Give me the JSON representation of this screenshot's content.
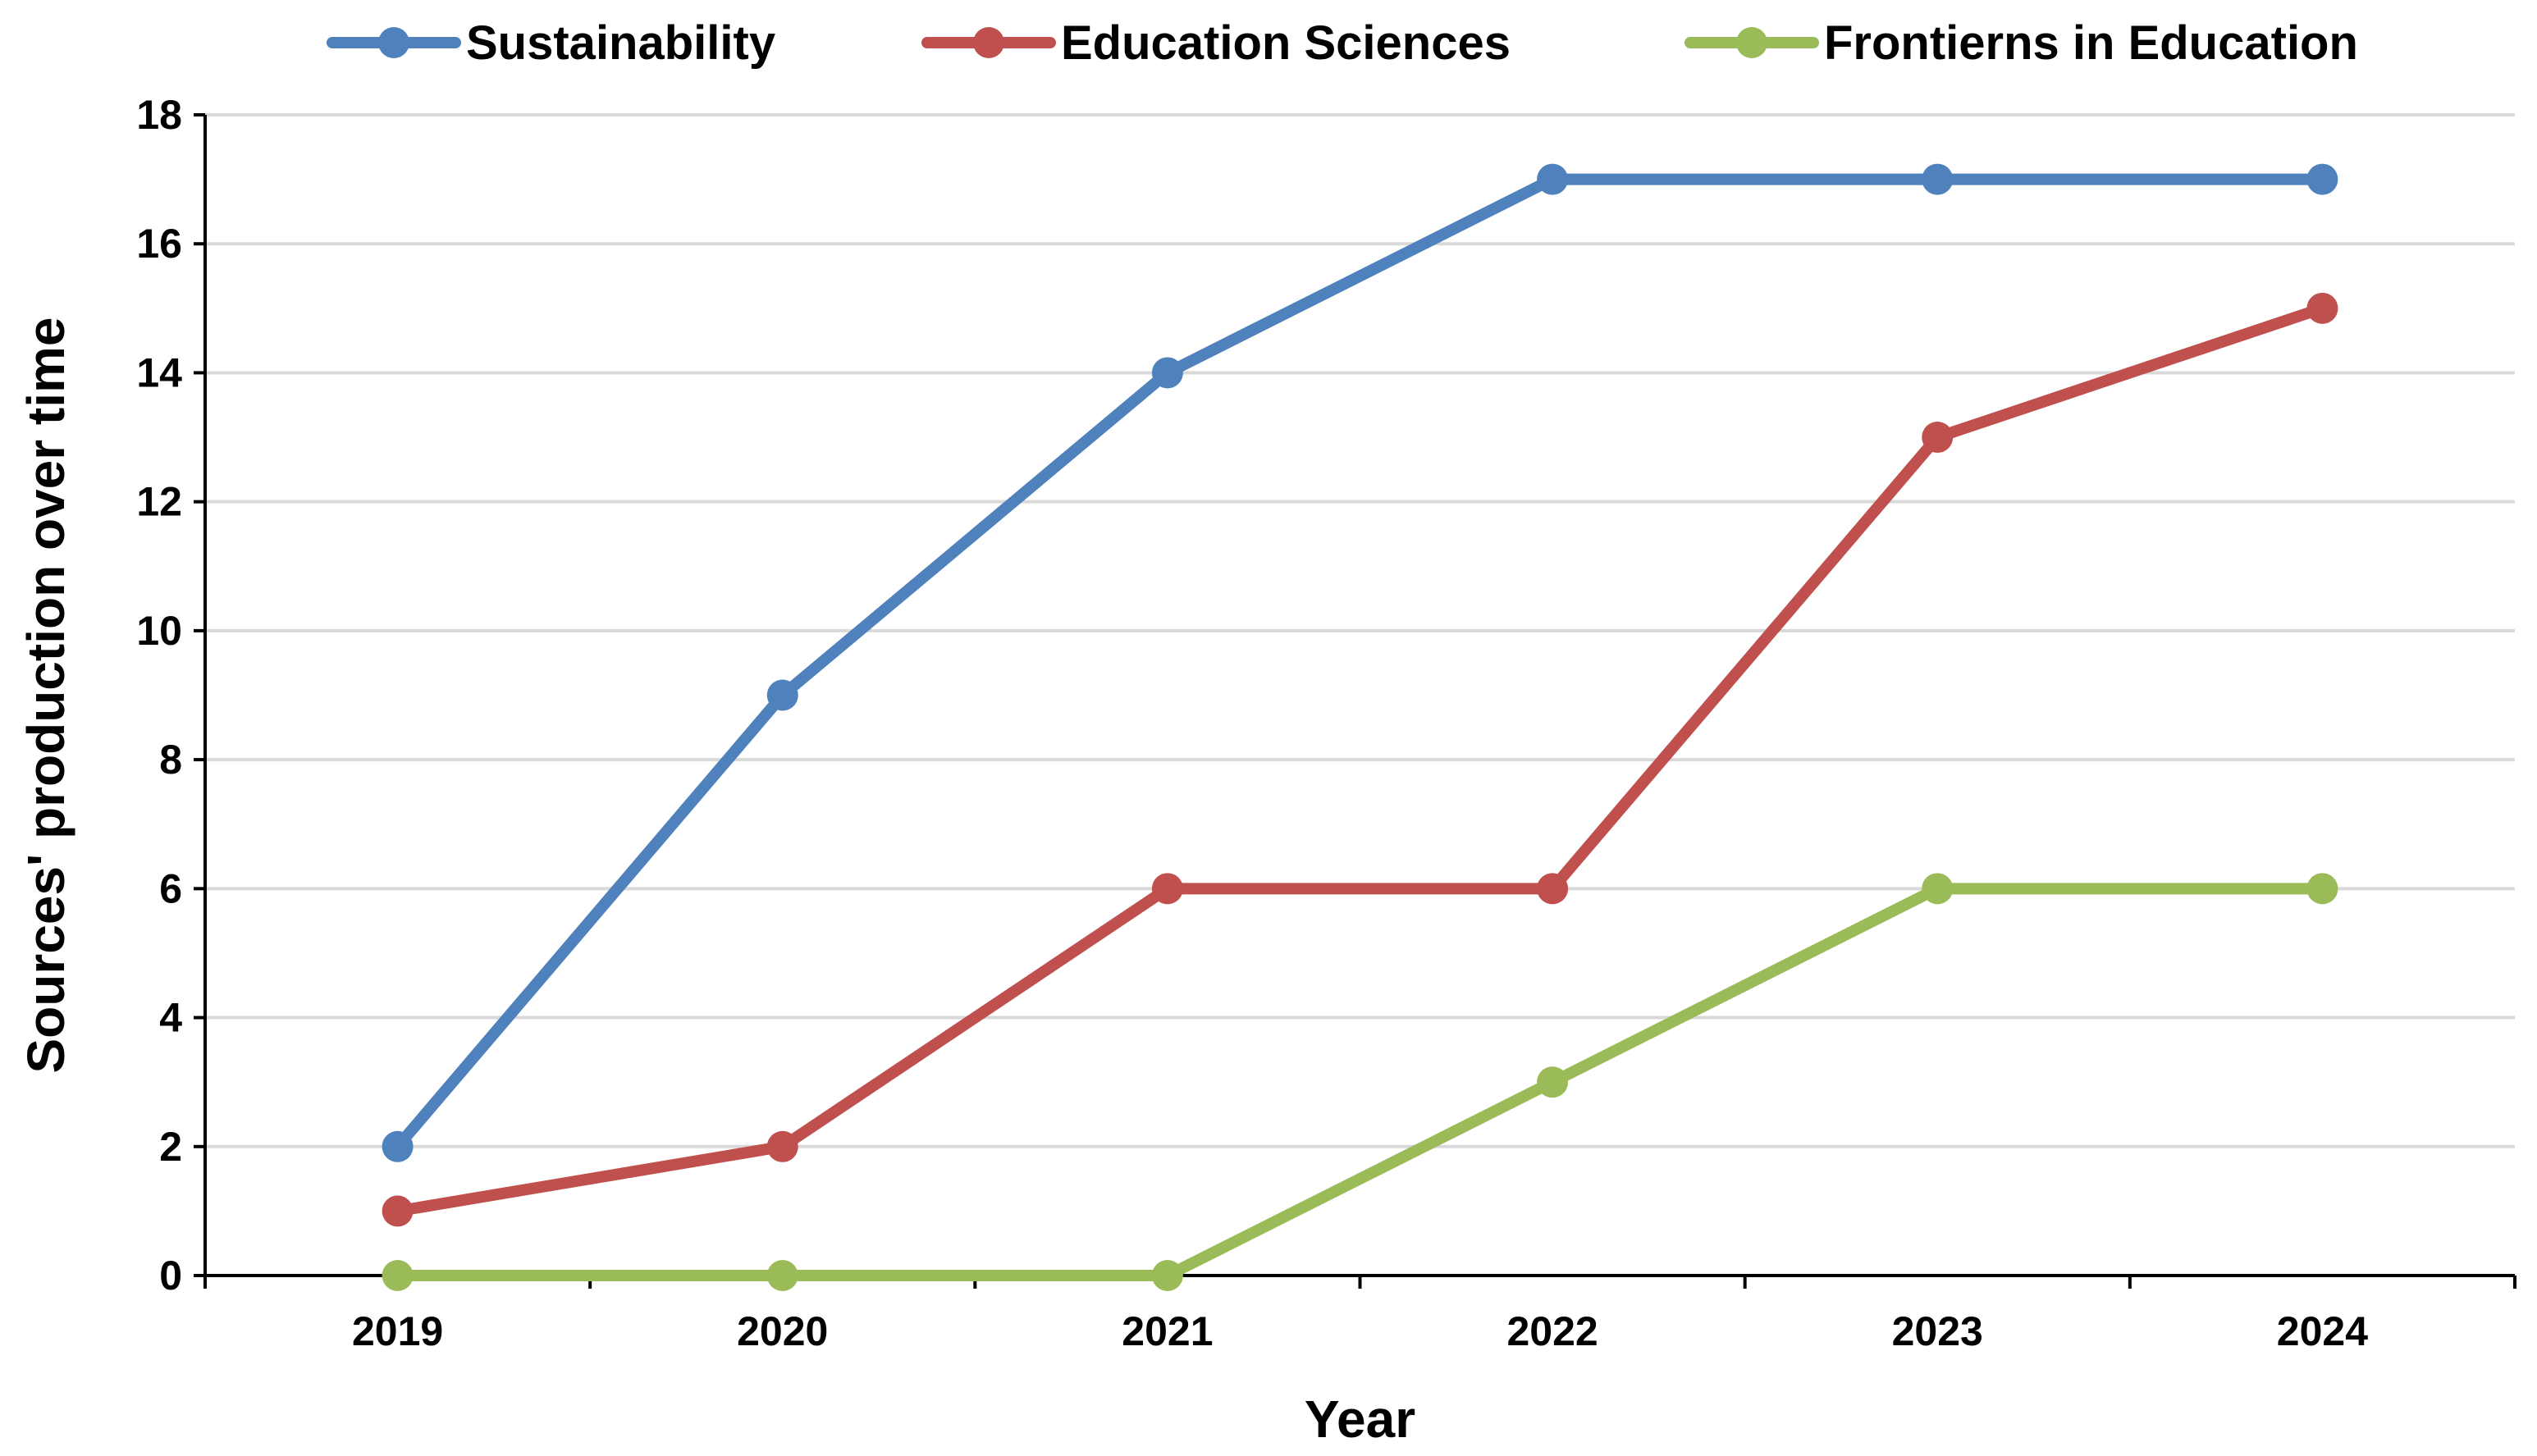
{
  "chart_data": {
    "type": "line",
    "title": "",
    "xlabel": "Year",
    "ylabel": "Sources' production over time",
    "categories": [
      "2019",
      "2020",
      "2021",
      "2022",
      "2023",
      "2024"
    ],
    "ylim": [
      0,
      18
    ],
    "yticks": [
      0,
      2,
      4,
      6,
      8,
      10,
      12,
      14,
      16,
      18
    ],
    "grid": true,
    "legend_position": "top",
    "series": [
      {
        "name": "Sustainability",
        "color": "#4F81BD",
        "values": [
          2,
          9,
          14,
          17,
          17,
          17
        ]
      },
      {
        "name": "Education Sciences",
        "color": "#C0504D",
        "values": [
          1,
          2,
          6,
          6,
          13,
          15
        ]
      },
      {
        "name": "Frontierns in Education",
        "color": "#9BBB59",
        "values": [
          0,
          0,
          0,
          3,
          6,
          6
        ]
      }
    ]
  }
}
